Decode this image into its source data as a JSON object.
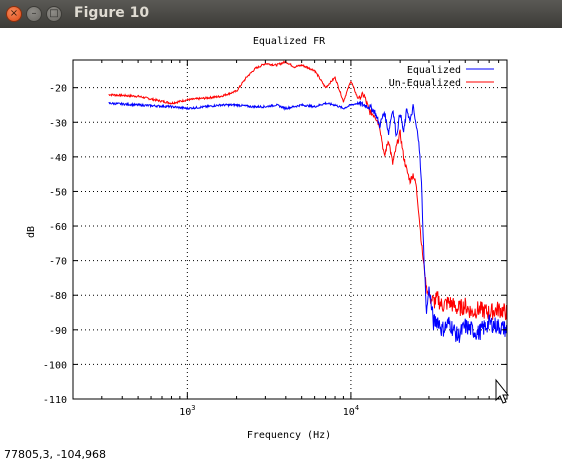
{
  "window": {
    "title": "Figure 10",
    "close_glyph": "×",
    "minimize_glyph": "–",
    "maximize_glyph": "□"
  },
  "status": {
    "coordinates": "77805,3, -104,968"
  },
  "chart_data": {
    "type": "line",
    "title": "Equalized FR",
    "xlabel": "Frequency (Hz)",
    "ylabel": "dB",
    "x_scale": "log",
    "xlim": [
      200,
      90000
    ],
    "ylim": [
      -110,
      -12
    ],
    "grid": true,
    "legend_position": "top-right",
    "x_ticks": [
      {
        "value": 1000,
        "base": "10",
        "exp": "3"
      },
      {
        "value": 10000,
        "base": "10",
        "exp": "4"
      }
    ],
    "y_ticks": [
      {
        "value": -20,
        "label": "-20"
      },
      {
        "value": -30,
        "label": "-30"
      },
      {
        "value": -40,
        "label": "-40"
      },
      {
        "value": -50,
        "label": "-50"
      },
      {
        "value": -60,
        "label": "-60"
      },
      {
        "value": -70,
        "label": "-70"
      },
      {
        "value": -80,
        "label": "-80"
      },
      {
        "value": -90,
        "label": "-90"
      },
      {
        "value": -100,
        "label": "-100"
      },
      {
        "value": -110,
        "label": "-110"
      }
    ],
    "series": [
      {
        "name": "Equalized",
        "color": "#0000ff",
        "x": [
          330,
          500,
          800,
          1000,
          1300,
          1600,
          2000,
          2500,
          3000,
          3500,
          4000,
          5000,
          6000,
          7000,
          8000,
          9000,
          10000,
          11000,
          12000,
          13000,
          14000,
          15000,
          16000,
          17000,
          18000,
          19000,
          20000,
          21000,
          22000,
          23000,
          24000,
          25000,
          26000,
          27000,
          28000,
          29000,
          30000,
          32000,
          34000,
          36000,
          40000,
          45000,
          50000,
          55000,
          60000,
          70000,
          80000,
          90000
        ],
        "y": [
          -24.5,
          -25,
          -25.5,
          -26,
          -25.5,
          -25,
          -25,
          -25.5,
          -25.5,
          -25,
          -26,
          -25,
          -25.5,
          -24.5,
          -25,
          -26,
          -25,
          -24.5,
          -25,
          -25.5,
          -27,
          -31,
          -27,
          -33,
          -26,
          -34,
          -27,
          -33,
          -26,
          -30,
          -25.5,
          -31,
          -35,
          -48,
          -70,
          -85,
          -78,
          -88,
          -87,
          -90,
          -88,
          -92,
          -89,
          -90,
          -91,
          -88,
          -89,
          -90
        ]
      },
      {
        "name": "Un-Equalized",
        "color": "#ff0000",
        "x": [
          330,
          500,
          800,
          1000,
          1300,
          1600,
          2000,
          2300,
          2600,
          3000,
          3500,
          4000,
          4500,
          5000,
          6000,
          7000,
          8000,
          9000,
          10000,
          11000,
          12000,
          13000,
          14000,
          15000,
          16000,
          17000,
          18000,
          19000,
          20000,
          21000,
          22000,
          23000,
          24000,
          25000,
          26000,
          27000,
          28000,
          29000,
          30000,
          32000,
          34000,
          36000,
          40000,
          45000,
          50000,
          55000,
          60000,
          70000,
          80000,
          90000
        ],
        "y": [
          -22,
          -22.5,
          -24.5,
          -23.5,
          -23,
          -22.5,
          -21,
          -17,
          -14.5,
          -13,
          -13.5,
          -12.5,
          -14,
          -13.5,
          -15,
          -20,
          -17,
          -24,
          -18,
          -23,
          -22,
          -27,
          -28,
          -31,
          -40,
          -35,
          -42,
          -37,
          -33,
          -40,
          -44,
          -47,
          -45,
          -48,
          -56,
          -65,
          -72,
          -78,
          -80,
          -82,
          -81,
          -83,
          -82,
          -84,
          -83,
          -85,
          -84,
          -85,
          -84,
          -85
        ]
      }
    ]
  }
}
